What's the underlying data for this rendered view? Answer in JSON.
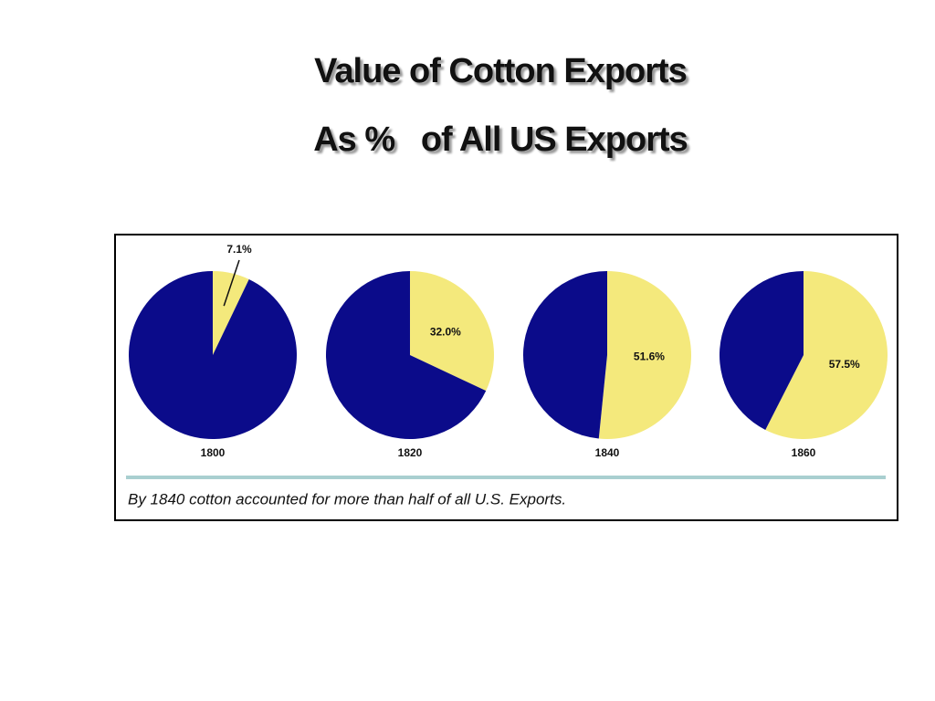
{
  "slide": {
    "title": [
      "Value of Cotton Exports",
      "As %   of All US Exports"
    ],
    "caption": "By 1840 cotton accounted for more than half of all U.S. Exports."
  },
  "chart_data": [
    {
      "type": "pie",
      "title": "1800",
      "categories": [
        null,
        null
      ],
      "values": [
        7.1,
        92.9
      ],
      "value_labels": [
        "7.1%",
        null
      ],
      "colors": [
        "#f4e97c",
        "#0b0b8a"
      ]
    },
    {
      "type": "pie",
      "title": "1820",
      "categories": [
        null,
        null
      ],
      "values": [
        32.0,
        68.0
      ],
      "value_labels": [
        "32.0%",
        null
      ],
      "colors": [
        "#f4e97c",
        "#0b0b8a"
      ]
    },
    {
      "type": "pie",
      "title": "1840",
      "categories": [
        null,
        null
      ],
      "values": [
        51.6,
        48.4
      ],
      "value_labels": [
        "51.6%",
        null
      ],
      "colors": [
        "#f4e97c",
        "#0b0b8a"
      ]
    },
    {
      "type": "pie",
      "title": "1860",
      "categories": [
        null,
        null
      ],
      "values": [
        57.5,
        42.5
      ],
      "value_labels": [
        "57.5%",
        null
      ],
      "colors": [
        "#f4e97c",
        "#0b0b8a"
      ]
    }
  ]
}
